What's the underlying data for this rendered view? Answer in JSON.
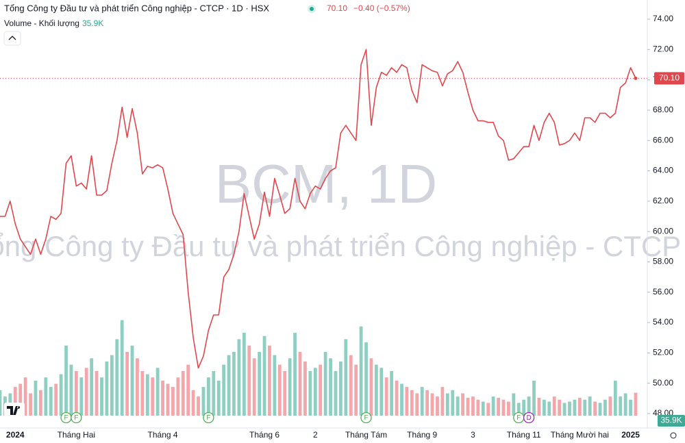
{
  "chart_data": {
    "type": "line",
    "title": "Tổng Công ty Đầu tư và phát triển Công nghiệp - CTCP · 1D · HSX",
    "quote_price": "70.10",
    "quote_change": "−0.40 (−0.57%)",
    "volume_title": "Volume - Khối lượng",
    "watermark": [
      "BCM, 1D",
      "Tổng Công ty Đầu tư và phát triển Công nghiệp - CTCP"
    ],
    "categories": [
      null,
      null,
      null,
      "2024",
      null,
      null,
      null,
      null,
      null,
      null,
      null,
      null,
      null,
      null,
      null,
      "Tháng Hai",
      null,
      null,
      null,
      null,
      null,
      null,
      null,
      null,
      null,
      null,
      null,
      null,
      null,
      null,
      null,
      null,
      "Tháng 4",
      null,
      null,
      null,
      null,
      null,
      null,
      null,
      null,
      null,
      null,
      null,
      null,
      null,
      null,
      null,
      null,
      null,
      null,
      null,
      "Tháng 6",
      null,
      null,
      null,
      null,
      null,
      null,
      null,
      null,
      null,
      "2",
      null,
      null,
      null,
      null,
      null,
      null,
      null,
      null,
      null,
      "Tháng Tám",
      null,
      null,
      null,
      null,
      null,
      null,
      null,
      null,
      null,
      null,
      "Tháng 9",
      null,
      null,
      null,
      null,
      null,
      null,
      null,
      null,
      null,
      "3",
      null,
      null,
      null,
      null,
      null,
      null,
      null,
      null,
      null,
      "Tháng 11",
      null,
      null,
      null,
      null,
      null,
      null,
      null,
      null,
      null,
      null,
      "Tháng Mười hai",
      null,
      null,
      null,
      null,
      null,
      null,
      null,
      null,
      null,
      "2025",
      null
    ],
    "values": [
      61.0,
      61.0,
      62.0,
      60.5,
      59.5,
      59.0,
      58.5,
      59.5,
      58.5,
      59.5,
      61.0,
      60.8,
      61.2,
      64.5,
      65.0,
      63.0,
      63.2,
      62.8,
      65.0,
      62.4,
      62.4,
      62.7,
      64.5,
      66.0,
      68.2,
      66.2,
      68.1,
      66.5,
      63.8,
      64.3,
      64.2,
      64.4,
      64.2,
      62.8,
      61.2,
      60.5,
      59.8,
      56.0,
      53.0,
      51.0,
      51.8,
      53.5,
      54.5,
      54.5,
      57.0,
      57.5,
      58.5,
      60.0,
      62.5,
      61.0,
      59.5,
      60.5,
      62.6,
      61.0,
      63.5,
      62.4,
      61.2,
      61.5,
      63.5,
      62.0,
      61.5,
      62.5,
      63.0,
      62.8,
      63.5,
      64.0,
      64.2,
      66.5,
      67.0,
      66.5,
      66.0,
      71.0,
      72.0,
      67.0,
      69.5,
      70.5,
      70.3,
      70.8,
      70.5,
      71.0,
      70.8,
      69.3,
      68.5,
      71.0,
      70.8,
      70.6,
      70.5,
      69.6,
      70.4,
      70.6,
      71.2,
      70.5,
      69.2,
      68.0,
      67.3,
      67.3,
      67.2,
      67.2,
      66.3,
      66.0,
      64.7,
      64.8,
      65.2,
      65.6,
      65.6,
      67.0,
      66.0,
      67.2,
      67.8,
      67.2,
      65.7,
      65.8,
      66.0,
      66.5,
      66.0,
      67.5,
      67.5,
      67.2,
      67.8,
      67.8,
      67.5,
      67.8,
      69.5,
      69.8,
      70.8,
      70.1
    ],
    "last_label": "70.10",
    "color": "#e0474c",
    "ylim": [
      47.2,
      74.8
    ],
    "yticks": [
      {
        "value": 48,
        "label": "48.00"
      },
      {
        "value": 50,
        "label": "50.00"
      },
      {
        "value": 52,
        "label": "52.00"
      },
      {
        "value": 54,
        "label": "54.00"
      },
      {
        "value": 56,
        "label": "56.00"
      },
      {
        "value": 58,
        "label": "58.00"
      },
      {
        "value": 60,
        "label": "60.00"
      },
      {
        "value": 62,
        "label": "62.00"
      },
      {
        "value": 64,
        "label": "64.00"
      },
      {
        "value": 66,
        "label": "66.00"
      },
      {
        "value": 68,
        "label": "68.00"
      },
      {
        "value": 70,
        "label": "70.00"
      },
      {
        "value": 72,
        "label": "72.00"
      },
      {
        "value": 74,
        "label": "74.00"
      }
    ],
    "volume": {
      "values": [
        40,
        30,
        35,
        45,
        50,
        60,
        35,
        55,
        40,
        60,
        45,
        50,
        65,
        110,
        80,
        70,
        60,
        75,
        90,
        70,
        60,
        85,
        95,
        120,
        150,
        100,
        110,
        90,
        70,
        65,
        60,
        75,
        55,
        50,
        45,
        60,
        70,
        80,
        40,
        30,
        45,
        60,
        70,
        55,
        80,
        95,
        100,
        120,
        130,
        110,
        90,
        100,
        125,
        110,
        95,
        80,
        70,
        90,
        130,
        100,
        85,
        70,
        75,
        80,
        100,
        90,
        70,
        85,
        120,
        95,
        80,
        140,
        115,
        90,
        80,
        75,
        60,
        70,
        55,
        50,
        45,
        40,
        35,
        45,
        40,
        35,
        30,
        45,
        35,
        40,
        30,
        35,
        28,
        30,
        25,
        22,
        20,
        30,
        28,
        25,
        22,
        35,
        20,
        25,
        30,
        55,
        28,
        25,
        22,
        30,
        25,
        20,
        22,
        25,
        28,
        25,
        30,
        22,
        20,
        25,
        30,
        55,
        30,
        35,
        25,
        35.9
      ],
      "last_label": "35.9K",
      "up_color": "#8fcfc2",
      "down_color": "#f3a7aa",
      "ylim": [
        0,
        230
      ]
    },
    "events": [
      {
        "index": 13,
        "label": "F"
      },
      {
        "index": 15,
        "label": "F"
      },
      {
        "index": 41,
        "label": "F"
      },
      {
        "index": 72,
        "label": "F"
      },
      {
        "index": 102,
        "label": "F"
      },
      {
        "index": 104,
        "label": "D"
      }
    ]
  }
}
